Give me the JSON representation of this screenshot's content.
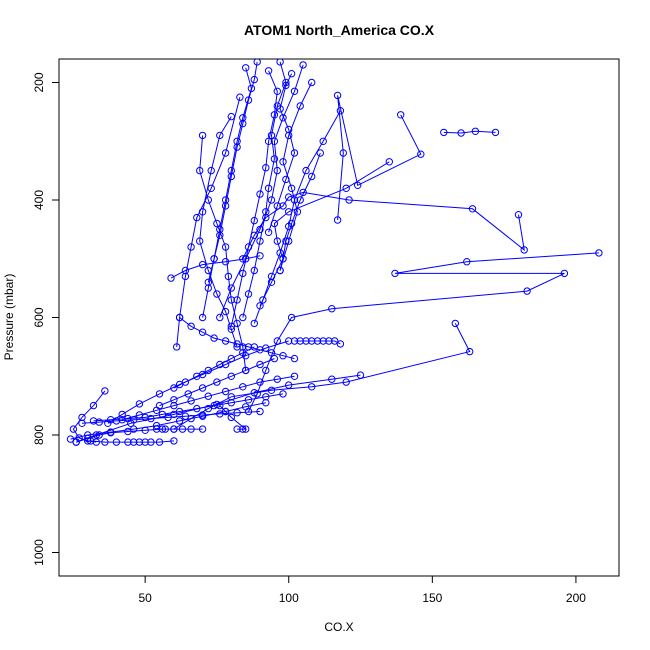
{
  "chart_data": {
    "type": "line",
    "title": "ATOM1 North_America CO.X",
    "xlabel": "CO.X",
    "ylabel": "Pressure (mbar)",
    "xlim": [
      20,
      215
    ],
    "ylim": [
      1040,
      160
    ],
    "y_reversed": true,
    "grid": false,
    "x_ticks": [
      50,
      100,
      150,
      200
    ],
    "y_ticks": [
      200,
      400,
      600,
      800,
      1000
    ],
    "x_tick_labels": [
      "50",
      "100",
      "150",
      "200"
    ],
    "y_tick_labels": [
      "200",
      "400",
      "600",
      "800",
      "1000"
    ],
    "series_color": "#0000ff",
    "marker": "open-circle",
    "series": [
      {
        "x": [
          154,
          160,
          165,
          172
        ],
        "y": [
          285,
          286,
          283,
          285
        ]
      },
      {
        "x": [
          139,
          146,
          124,
          117,
          119,
          117
        ],
        "y": [
          255,
          322,
          375,
          222,
          320,
          434
        ]
      },
      {
        "x": [
          135,
          120,
          100,
          95,
          96,
          98,
          94,
          90
        ],
        "y": [
          335,
          380,
          420,
          440,
          470,
          500,
          540,
          580
        ]
      },
      {
        "x": [
          208,
          162,
          137,
          196,
          183,
          115,
          101,
          96,
          92,
          89,
          86
        ],
        "y": [
          490,
          505,
          525,
          525,
          555,
          585,
          600,
          640,
          690,
          730,
          760
        ]
      },
      {
        "x": [
          180,
          182,
          164,
          121,
          105,
          100,
          98,
          92,
          88,
          84
        ],
        "y": [
          425,
          485,
          415,
          400,
          387,
          395,
          410,
          430,
          460,
          500
        ]
      },
      {
        "x": [
          158,
          163,
          120,
          108,
          94,
          80,
          72,
          66,
          60
        ],
        "y": [
          610,
          658,
          710,
          718,
          724,
          735,
          755,
          772,
          790
        ]
      },
      {
        "x": [
          125,
          115,
          100,
          88,
          75,
          60,
          45,
          33,
          26
        ],
        "y": [
          698,
          705,
          715,
          728,
          748,
          765,
          780,
          800,
          812
        ]
      },
      {
        "x": [
          100,
          92,
          85,
          78,
          70,
          62,
          55,
          48,
          42,
          37
        ],
        "y": [
          640,
          652,
          665,
          680,
          697,
          714,
          730,
          747,
          765,
          780
        ]
      },
      {
        "x": [
          102,
          104,
          106,
          108,
          110,
          112,
          114,
          116,
          118
        ],
        "y": [
          640,
          640,
          640,
          640,
          640,
          640,
          640,
          640,
          645
        ]
      },
      {
        "x": [
          92,
          85,
          78,
          70,
          62,
          54,
          46,
          38,
          30,
          24
        ],
        "y": [
          745,
          752,
          760,
          768,
          776,
          784,
          790,
          795,
          800,
          807
        ]
      },
      {
        "x": [
          60,
          55,
          52,
          50,
          48,
          46,
          44,
          40,
          36,
          31
        ],
        "y": [
          810,
          812,
          812,
          812,
          812,
          812,
          812,
          812,
          812,
          810
        ]
      },
      {
        "x": [
          70,
          66,
          63,
          60,
          57,
          54
        ],
        "y": [
          790,
          790,
          790,
          790,
          790,
          790
        ]
      },
      {
        "x": [
          82,
          84,
          85,
          80,
          78,
          76
        ],
        "y": [
          790,
          790,
          790,
          770,
          760,
          750
        ]
      },
      {
        "x": [
          89,
          88,
          86,
          84,
          82,
          80,
          78,
          76,
          74,
          72
        ],
        "y": [
          165,
          195,
          230,
          270,
          310,
          360,
          410,
          460,
          500,
          540
        ]
      },
      {
        "x": [
          97,
          99,
          96,
          94,
          95,
          93,
          92,
          90,
          88,
          86,
          84
        ],
        "y": [
          165,
          200,
          240,
          290,
          330,
          380,
          420,
          470,
          520,
          560,
          600
        ]
      },
      {
        "x": [
          105,
          102,
          98,
          95,
          96,
          94,
          90,
          85,
          80,
          76
        ],
        "y": [
          170,
          215,
          260,
          300,
          350,
          400,
          450,
          500,
          550,
          600
        ]
      },
      {
        "x": [
          101,
          99,
          97,
          100,
          102,
          99,
          96,
          93
        ],
        "y": [
          185,
          205,
          245,
          280,
          320,
          365,
          410,
          455
        ]
      },
      {
        "x": [
          108,
          104,
          100,
          98,
          101,
          103,
          100,
          97
        ],
        "y": [
          200,
          240,
          290,
          335,
          380,
          420,
          470,
          520
        ]
      },
      {
        "x": [
          80,
          76,
          73,
          70,
          69,
          72,
          75,
          78,
          80,
          82
        ],
        "y": [
          258,
          290,
          350,
          420,
          470,
          520,
          560,
          590,
          620,
          650
        ]
      },
      {
        "x": [
          83,
          78,
          73,
          68,
          66,
          64,
          62,
          61
        ],
        "y": [
          225,
          320,
          380,
          430,
          480,
          530,
          600,
          650
        ]
      },
      {
        "x": [
          70,
          69,
          72,
          75,
          78,
          79,
          80,
          82,
          84,
          85
        ],
        "y": [
          290,
          350,
          400,
          440,
          480,
          530,
          570,
          610,
          650,
          690
        ]
      },
      {
        "x": [
          118,
          112,
          106,
          102,
          100,
          97,
          94,
          91,
          88
        ],
        "y": [
          248,
          300,
          350,
          400,
          445,
          490,
          530,
          570,
          610
        ]
      },
      {
        "x": [
          111,
          108,
          104,
          101,
          99,
          98,
          97
        ],
        "y": [
          320,
          360,
          400,
          440,
          470,
          500,
          520
        ]
      },
      {
        "x": [
          85,
          87,
          84,
          82,
          80,
          78,
          76,
          74,
          72,
          70
        ],
        "y": [
          175,
          210,
          260,
          300,
          350,
          400,
          450,
          500,
          550,
          600
        ]
      },
      {
        "x": [
          93,
          96,
          95,
          93,
          92,
          90,
          88,
          86,
          84,
          82,
          80
        ],
        "y": [
          180,
          215,
          255,
          300,
          345,
          390,
          435,
          480,
          525,
          570,
          615
        ]
      },
      {
        "x": [
          59,
          64,
          70,
          78,
          85,
          90
        ],
        "y": [
          533,
          520,
          510,
          505,
          500,
          495
        ]
      },
      {
        "x": [
          62,
          66,
          70,
          74,
          78,
          82,
          86,
          90,
          94,
          98,
          102
        ],
        "y": [
          600,
          615,
          625,
          635,
          640,
          645,
          650,
          655,
          660,
          665,
          670
        ]
      },
      {
        "x": [
          88,
          84,
          80,
          76,
          72,
          68,
          64,
          60
        ],
        "y": [
          650,
          660,
          670,
          680,
          690,
          700,
          710,
          720
        ]
      },
      {
        "x": [
          95,
          90,
          85,
          80,
          75,
          70,
          65,
          60,
          55
        ],
        "y": [
          670,
          680,
          690,
          700,
          710,
          720,
          730,
          740,
          750
        ]
      },
      {
        "x": [
          102,
          96,
          90,
          84,
          78,
          72,
          66,
          60,
          54,
          48,
          42
        ],
        "y": [
          700,
          705,
          710,
          718,
          726,
          734,
          742,
          750,
          758,
          766,
          774
        ]
      },
      {
        "x": [
          98,
          92,
          86,
          80,
          74,
          68,
          62,
          56,
          50,
          44,
          38,
          32
        ],
        "y": [
          730,
          735,
          740,
          745,
          750,
          755,
          760,
          765,
          770,
          772,
          774,
          776
        ]
      },
      {
        "x": [
          90,
          82,
          76,
          70,
          64,
          58,
          52,
          46,
          40,
          34,
          28
        ],
        "y": [
          760,
          762,
          764,
          766,
          768,
          770,
          772,
          774,
          776,
          778,
          780
        ]
      },
      {
        "x": [
          36,
          32,
          28,
          25,
          27,
          30,
          33
        ],
        "y": [
          725,
          750,
          770,
          790,
          805,
          810,
          812
        ]
      },
      {
        "x": [
          26,
          30,
          34,
          38,
          44,
          50,
          56
        ],
        "y": [
          812,
          806,
          800,
          796,
          794,
          792,
          790
        ]
      }
    ]
  }
}
